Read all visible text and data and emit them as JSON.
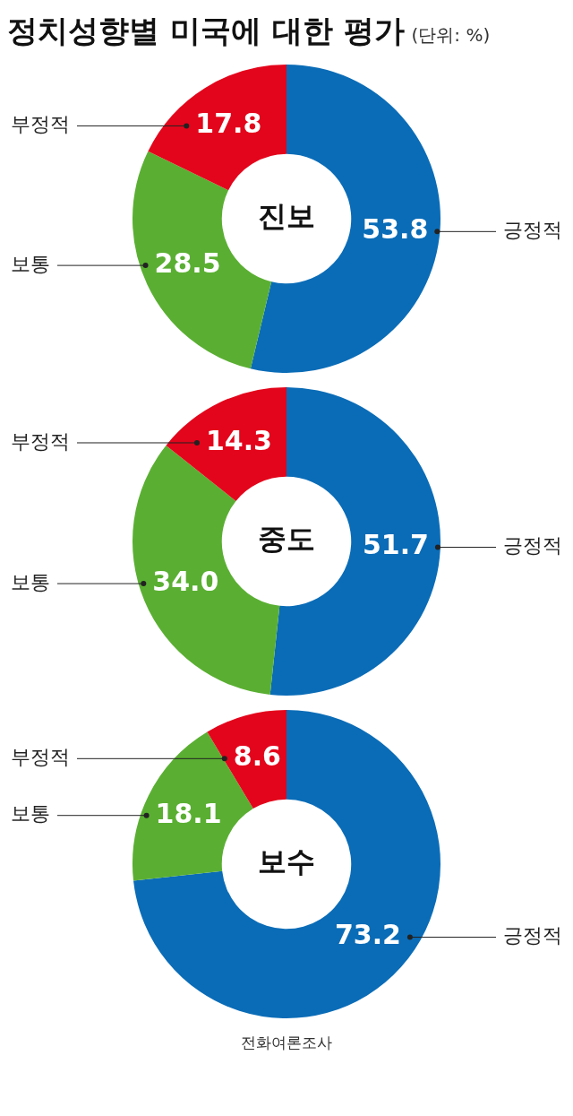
{
  "chart_data": [
    {
      "type": "donut",
      "title": "정치성향별 미국에 대한 평가",
      "subtitle": "(단위: %)",
      "annotations": [
        "진보"
      ],
      "categories": [
        "긍정적",
        "보통",
        "부정적"
      ],
      "values": [
        53.8,
        28.5,
        17.8
      ],
      "colors": [
        "#0a6cb7",
        "#5aaf32",
        "#e3051b"
      ],
      "data_labels": true,
      "legend": false
    },
    {
      "type": "donut",
      "annotations": [
        "중도"
      ],
      "categories": [
        "긍정적",
        "보통",
        "부정적"
      ],
      "values": [
        51.7,
        34.0,
        14.3
      ],
      "value_labels": [
        "51.7",
        "34.0",
        "14.3"
      ],
      "colors": [
        "#0a6cb7",
        "#5aaf32",
        "#e3051b"
      ],
      "legend": false
    },
    {
      "type": "donut",
      "annotations": [
        "보수",
        "전화여론조사"
      ],
      "categories": [
        "긍정적",
        "보통",
        "부정적"
      ],
      "values": [
        73.2,
        18.1,
        8.6
      ],
      "colors": [
        "#0a6cb7",
        "#5aaf32",
        "#e3051b"
      ],
      "data_labels": true,
      "legend": false
    }
  ]
}
